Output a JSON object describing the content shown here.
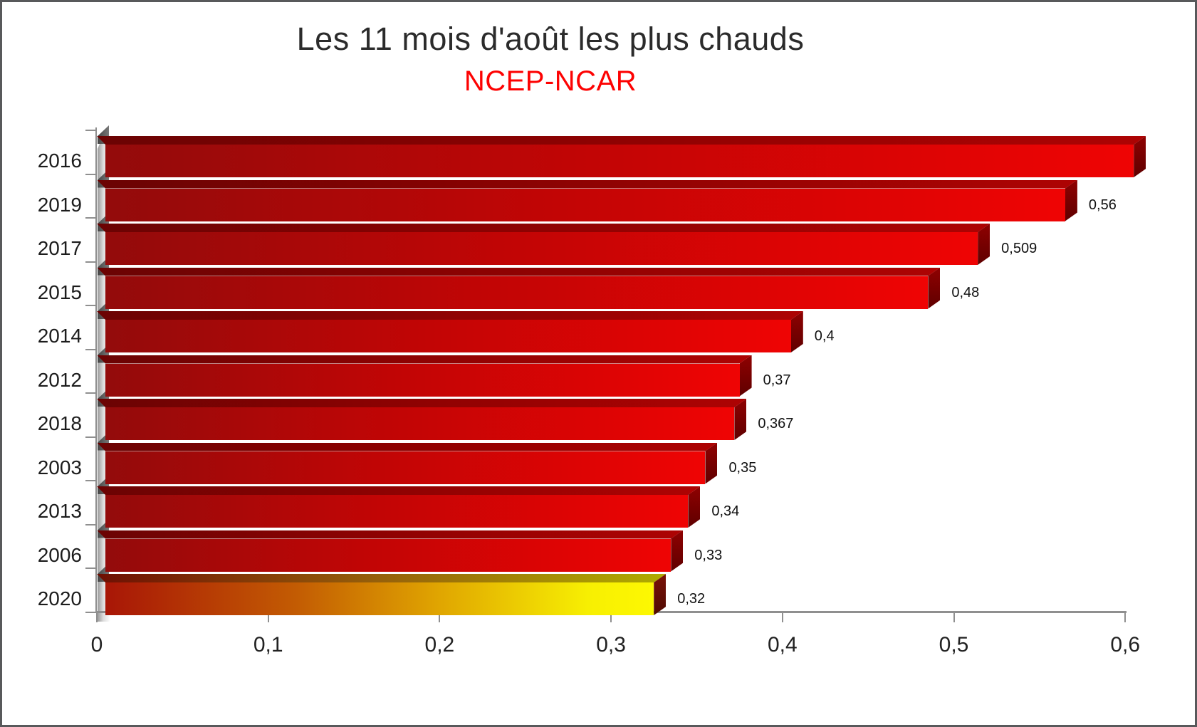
{
  "title": {
    "line1": "Les 11 mois d'août les plus chauds",
    "line2": "NCEP-NCAR"
  },
  "colors": {
    "subtitle_red": "#fd0202",
    "bar_face_gradient": [
      "#930b0b",
      "#c00505",
      "#ef0404"
    ],
    "bar_top_gradient": [
      "#6b0303",
      "#8f0202",
      "#ad0303"
    ],
    "bar_side_gradient": [
      "#8f0101",
      "#5f0000"
    ],
    "highlight_face_gradient": [
      "#a81606",
      "#c35c03",
      "#dfa301",
      "#f7ef02",
      "#fdf802"
    ],
    "highlight_top_gradient": [
      "#6e0f03",
      "#96610b",
      "#b0ab00"
    ],
    "highlight_side_gradient": [
      "#7a1208",
      "#4f0b02"
    ],
    "axis_color": "#8f8f8f",
    "text_color": "#1c1c1c"
  },
  "chart_data": {
    "type": "bar",
    "orientation": "horizontal",
    "title": "Les 11 mois d'août les plus chauds",
    "subtitle": "NCEP-NCAR",
    "categories": [
      "2016",
      "2019",
      "2017",
      "2015",
      "2014",
      "2012",
      "2018",
      "2003",
      "2013",
      "2006",
      "2020"
    ],
    "values": [
      0.6,
      0.56,
      0.509,
      0.48,
      0.4,
      0.37,
      0.367,
      0.35,
      0.34,
      0.33,
      0.32
    ],
    "value_labels": [
      "",
      "0,56",
      "0,509",
      "0,48",
      "0,4",
      "0,37",
      "0,367",
      "0,35",
      "0,34",
      "0,33",
      "0,32"
    ],
    "highlight_category": "2020",
    "xlabel": "",
    "ylabel": "",
    "xlim": [
      0,
      0.6
    ],
    "x_ticks": [
      "0",
      "0,1",
      "0,2",
      "0,3",
      "0,4",
      "0,5",
      "0,6"
    ],
    "x_tick_values": [
      0,
      0.1,
      0.2,
      0.3,
      0.4,
      0.5,
      0.6
    ],
    "grid": false,
    "legend": false,
    "style": "3d-bars",
    "note": "2016 bar has no printed data label; value estimated from axis"
  }
}
